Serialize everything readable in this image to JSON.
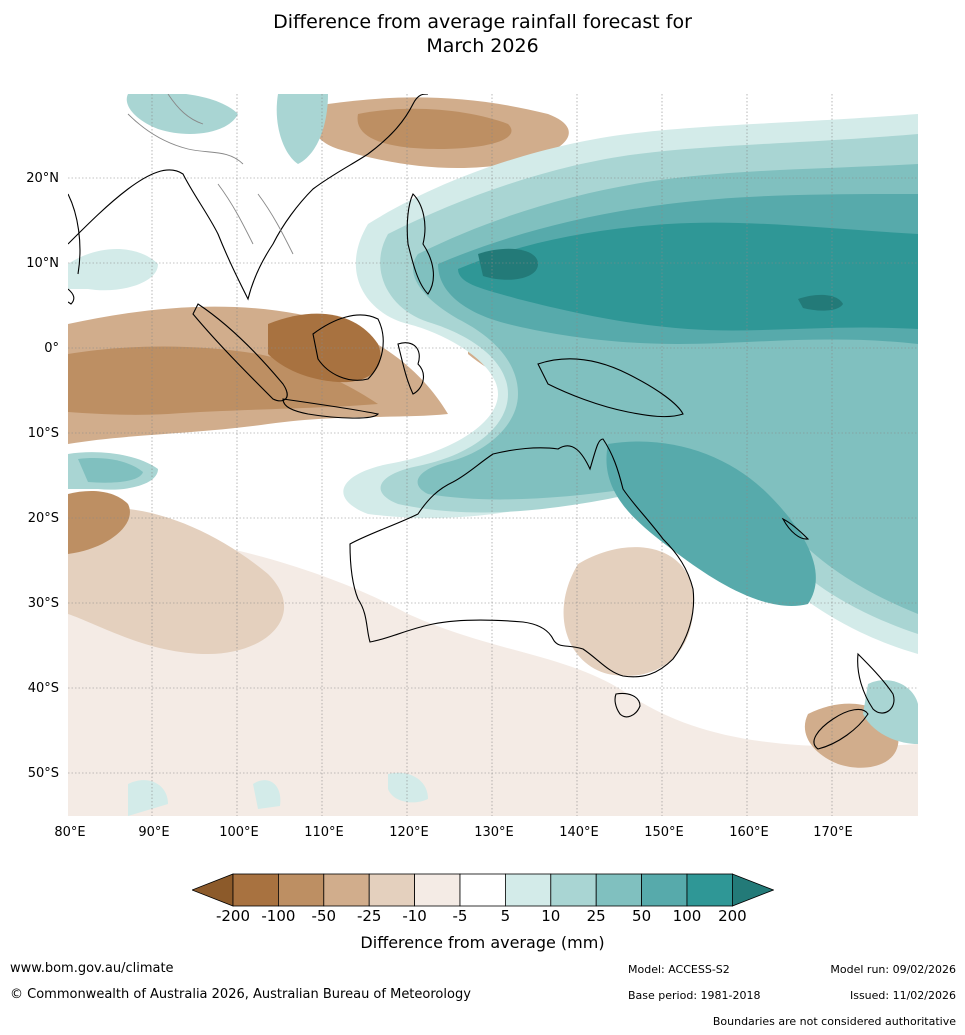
{
  "title_line1": "Difference from average rainfall forecast for",
  "title_line2": "March 2026",
  "lat_labels": [
    "20°N",
    "10°N",
    "0°",
    "10°S",
    "20°S",
    "30°S",
    "40°S",
    "50°S"
  ],
  "lon_labels": [
    "80°E",
    "90°E",
    "100°E",
    "110°E",
    "120°E",
    "130°E",
    "140°E",
    "150°E",
    "160°E",
    "170°E"
  ],
  "legend": {
    "label": "Difference from average (mm)",
    "ticks": [
      "-200",
      "-100",
      "-50",
      "-25",
      "-10",
      "-5",
      "5",
      "10",
      "25",
      "50",
      "100",
      "200"
    ],
    "colors": [
      "#8c5a2a",
      "#a87240",
      "#bd8f63",
      "#d1ad8c",
      "#e4d0be",
      "#f4ebe5",
      "#ffffff",
      "#d3ebe9",
      "#a9d5d3",
      "#80c0bf",
      "#57aaab",
      "#2f9796",
      "#237a78"
    ]
  },
  "footer": {
    "website": "www.bom.gov.au/climate",
    "copyright": "© Commonwealth of Australia 2026, Australian Bureau of Meteorology",
    "model": "Model: ACCESS-S2",
    "base_period": "Base period: 1981-2018",
    "model_run": "Model run: 09/02/2026",
    "issued": "Issued: 11/02/2026",
    "boundaries": "Boundaries are not considered authoritative"
  }
}
